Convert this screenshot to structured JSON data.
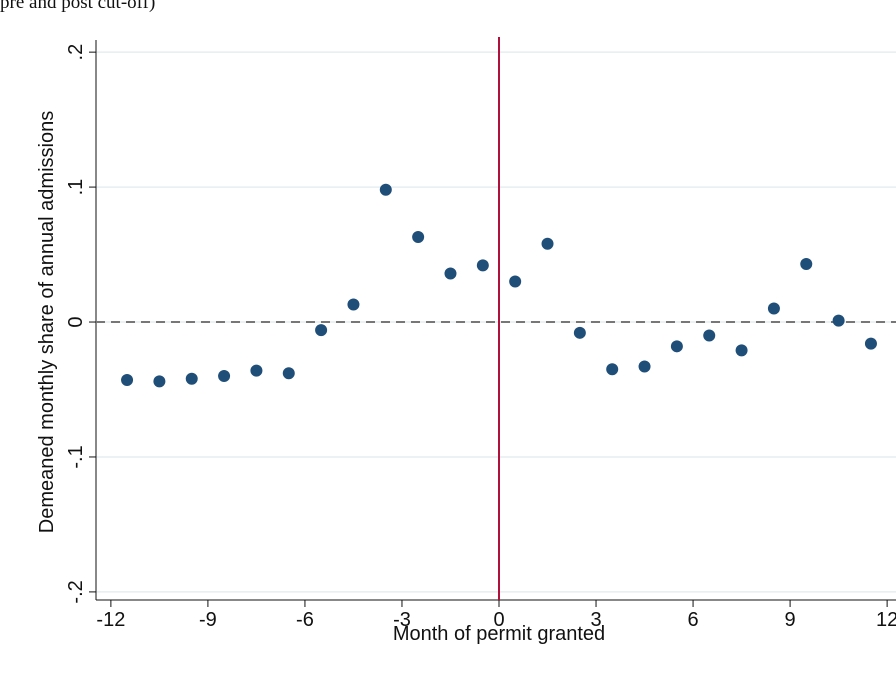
{
  "caption": "pre and post cut-off)",
  "chart_data": {
    "type": "scatter",
    "x_label": "Month of permit granted",
    "y_label": "Demeaned monthly share of annual admissions",
    "x": [
      -11.5,
      -10.5,
      -9.5,
      -8.5,
      -7.5,
      -6.5,
      -5.5,
      -4.5,
      -3.5,
      -2.5,
      -1.5,
      -0.5,
      0.5,
      1.5,
      2.5,
      3.5,
      4.5,
      5.5,
      6.5,
      7.5,
      8.5,
      9.5,
      10.5,
      11.5
    ],
    "values": [
      -0.043,
      -0.044,
      -0.042,
      -0.04,
      -0.036,
      -0.038,
      -0.006,
      0.013,
      0.098,
      0.063,
      0.036,
      0.042,
      0.03,
      0.058,
      -0.008,
      -0.035,
      -0.033,
      -0.018,
      -0.01,
      -0.021,
      0.01,
      0.043,
      0.001,
      -0.016
    ],
    "color": "#1f4e79",
    "xlim": [
      -12.46,
      12.46
    ],
    "xticks": [
      -12,
      -9,
      -6,
      -3,
      0,
      3,
      6,
      9,
      12
    ],
    "ylim": [
      -0.206,
      0.209
    ],
    "yticks": [
      {
        "value": -0.2,
        "label": "-.2"
      },
      {
        "value": -0.1,
        "label": "-.1"
      },
      0,
      {
        "value": 0.1,
        "label": ".1"
      },
      {
        "value": 0.2,
        "label": ".2"
      }
    ],
    "grid": true,
    "xline": 0,
    "xline_color": "#b0113a",
    "yline": 0,
    "yline_color": "#777777"
  }
}
